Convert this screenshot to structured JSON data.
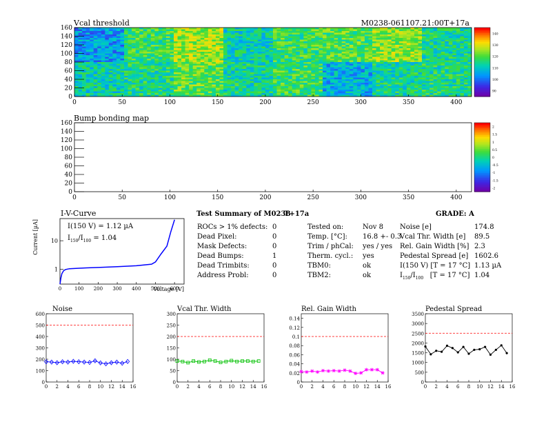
{
  "colors": {
    "noise": "#0000ff",
    "vcal": "#00c000",
    "gain": "#ff00ff",
    "ped": "#000000",
    "limit": "#ff0000",
    "iv": "#0000ff"
  },
  "map1": {
    "title": "Vcal threshold",
    "module_id": "M0238-061107.21:00T+17a",
    "xticks": [
      "0",
      "50",
      "100",
      "150",
      "200",
      "250",
      "300",
      "350",
      "400"
    ],
    "yticks": [
      "0",
      "20",
      "40",
      "60",
      "80",
      "100",
      "120",
      "140",
      "160"
    ],
    "xrange": [
      0,
      416
    ],
    "yrange": [
      0,
      160
    ],
    "colorbar_ticks": [
      "90",
      "100",
      "110",
      "120",
      "130",
      "140"
    ]
  },
  "map2": {
    "title": "Bump bonding map",
    "xticks": [
      "0",
      "50",
      "100",
      "150",
      "200",
      "250",
      "300",
      "350",
      "400"
    ],
    "yticks": [
      "0",
      "20",
      "40",
      "60",
      "80",
      "100",
      "120",
      "140",
      "160"
    ],
    "xrange": [
      0,
      416
    ],
    "yrange": [
      0,
      160
    ],
    "colorbar_ticks": [
      "-2",
      "-1.5",
      "-1",
      "-0.5",
      "0",
      "0.5",
      "1",
      "1.5",
      "2"
    ]
  },
  "chart_data": [
    {
      "type": "line",
      "title": "I-V-Curve",
      "xlabel": "Voltage [V]",
      "ylabel": "Current [µA]",
      "xlim": [
        0,
        650
      ],
      "ylim": [
        0.3,
        60
      ],
      "yscale": "log",
      "xticks": [
        "0",
        "100",
        "200",
        "300",
        "400",
        "500",
        "600"
      ],
      "yticks": [
        "1",
        "10"
      ],
      "annotation1": "I(150 V) = 1.12 µA",
      "annotation2_pre": "I",
      "annotation2_sub1": "150",
      "annotation2_mid": "/I",
      "annotation2_sub2": "100",
      "annotation2_post": " = 1.04",
      "x": [
        0,
        5,
        10,
        20,
        30,
        50,
        100,
        150,
        200,
        300,
        400,
        480,
        500,
        530,
        560,
        580,
        600
      ],
      "y": [
        0.3,
        0.5,
        0.7,
        0.9,
        0.98,
        1.04,
        1.08,
        1.12,
        1.15,
        1.22,
        1.32,
        1.5,
        1.8,
        3.5,
        6.5,
        20,
        55
      ]
    },
    {
      "type": "line",
      "title": "Noise",
      "xlim": [
        0,
        16
      ],
      "ylim": [
        0,
        600
      ],
      "limit": 500,
      "xticks": [
        "0",
        "2",
        "4",
        "6",
        "8",
        "10",
        "12",
        "14",
        "16"
      ],
      "yticks": [
        "0",
        "100",
        "200",
        "300",
        "400",
        "500",
        "600"
      ],
      "x": [
        0,
        1,
        2,
        3,
        4,
        5,
        6,
        7,
        8,
        9,
        10,
        11,
        12,
        13,
        14,
        15
      ],
      "y": [
        178,
        175,
        170,
        178,
        175,
        182,
        178,
        175,
        172,
        186,
        168,
        160,
        170,
        175,
        165,
        180
      ]
    },
    {
      "type": "line",
      "title": "Vcal Thr. Width",
      "xlim": [
        0,
        16
      ],
      "ylim": [
        0,
        300
      ],
      "limit": 200,
      "xticks": [
        "0",
        "2",
        "4",
        "6",
        "8",
        "10",
        "12",
        "14",
        "16"
      ],
      "yticks": [
        "0",
        "50",
        "100",
        "150",
        "200",
        "250",
        "300"
      ],
      "x": [
        0,
        1,
        2,
        3,
        4,
        5,
        6,
        7,
        8,
        9,
        10,
        11,
        12,
        13,
        14,
        15
      ],
      "y": [
        92,
        90,
        85,
        92,
        88,
        90,
        96,
        92,
        86,
        90,
        94,
        90,
        92,
        92,
        90,
        92
      ]
    },
    {
      "type": "line",
      "title": "Rel. Gain Width",
      "xlim": [
        0,
        16
      ],
      "ylim": [
        0,
        0.15
      ],
      "limit": 0.1,
      "xticks": [
        "0",
        "2",
        "4",
        "6",
        "8",
        "10",
        "12",
        "14",
        "16"
      ],
      "yticks": [
        "0",
        "0.02",
        "0.04",
        "0.06",
        "0.08",
        "0.1",
        "0.12",
        "0.14"
      ],
      "x": [
        0,
        1,
        2,
        3,
        4,
        5,
        6,
        7,
        8,
        9,
        10,
        11,
        12,
        13,
        14,
        15
      ],
      "y": [
        0.023,
        0.022,
        0.024,
        0.022,
        0.025,
        0.024,
        0.025,
        0.024,
        0.026,
        0.024,
        0.019,
        0.02,
        0.027,
        0.027,
        0.027,
        0.02
      ]
    },
    {
      "type": "line",
      "title": "Pedestal Spread",
      "xlim": [
        0,
        16
      ],
      "ylim": [
        0,
        3500
      ],
      "limit": 2500,
      "xticks": [
        "0",
        "2",
        "4",
        "6",
        "8",
        "10",
        "12",
        "14",
        "16"
      ],
      "yticks": [
        "0",
        "500",
        "1000",
        "1500",
        "2000",
        "2500",
        "3000",
        "3500"
      ],
      "x": [
        0,
        1,
        2,
        3,
        4,
        5,
        6,
        7,
        8,
        9,
        10,
        11,
        12,
        13,
        14,
        15
      ],
      "y": [
        1820,
        1420,
        1600,
        1550,
        1860,
        1740,
        1520,
        1800,
        1450,
        1650,
        1680,
        1800,
        1400,
        1650,
        1880,
        1480
      ]
    }
  ],
  "summary": {
    "heading": "Test Summary of M0238",
    "temp_suffix": "T+17a",
    "grade": "GRADE:  A",
    "left": [
      {
        "label": "ROCs > 1% defects:",
        "value": "0"
      },
      {
        "label": "Dead Pixel:",
        "value": "0"
      },
      {
        "label": "Mask Defects:",
        "value": "0"
      },
      {
        "label": "Dead Bumps:",
        "value": "1"
      },
      {
        "label": "Dead Trimbits:",
        "value": "0"
      },
      {
        "label": "Address Probl:",
        "value": "0"
      }
    ],
    "middle": [
      {
        "label": "Tested on:",
        "value": "Nov 8"
      },
      {
        "label": "Temp. [°C]:",
        "value": "16.8 +- 0.3"
      },
      {
        "label": "Trim / phCal:",
        "value": "yes / yes"
      },
      {
        "label": "Therm. cycl.:",
        "value": "yes"
      },
      {
        "label": "TBM0:",
        "value": "ok"
      },
      {
        "label": "TBM2:",
        "value": "ok"
      }
    ],
    "right": [
      {
        "label": "Noise [e]",
        "value": "174.8"
      },
      {
        "label": "Vcal Thr. Width [e]",
        "value": "89.5"
      },
      {
        "label": "Rel. Gain Width [%]",
        "value": "2.3"
      },
      {
        "label": "Pedestal Spread [e]",
        "value": "1602.6"
      },
      {
        "label": "I(150 V) [T = 17 °C]",
        "value": "1.13 µA"
      },
      {
        "label": "",
        "value": "1.04"
      }
    ],
    "ratio_label_pre": "I",
    "ratio_sub1": "150",
    "ratio_mid": "/I",
    "ratio_sub2": "100",
    "ratio_post": "   [T = 17 °C]"
  }
}
